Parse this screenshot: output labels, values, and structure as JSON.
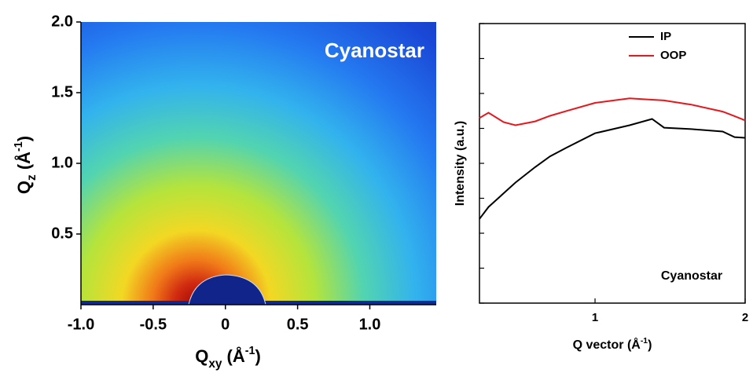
{
  "chart_data": [
    {
      "type": "heatmap",
      "annotation": "Cyanostar",
      "x_label": [
        "Q",
        "xy",
        " (Å",
        "-1",
        ")"
      ],
      "y_label": [
        "Q",
        "z",
        " (Å",
        "-1",
        ")"
      ],
      "xlim": [
        -1.0,
        1.46
      ],
      "ylim": [
        0,
        2.0
      ],
      "xticks": [
        {
          "value": -1.0,
          "label": "-1.0"
        },
        {
          "value": -0.5,
          "label": "-0.5"
        },
        0,
        0.5,
        {
          "value": 1.0,
          "label": "1.0"
        }
      ],
      "yticks": [
        0.5,
        {
          "value": 1.0,
          "label": "1.0"
        },
        1.5,
        {
          "value": 2.0,
          "label": "2.0"
        }
      ]
    },
    {
      "type": "line",
      "annotation": "Cyanostar",
      "x_label": [
        "Q vector (Å",
        "-1",
        ")"
      ],
      "y_label": "Intensity (a.u.)",
      "x": [
        0.23,
        0.29,
        0.39,
        0.47,
        0.6,
        0.7,
        0.81,
        1.0,
        1.23,
        1.38,
        1.46,
        1.64,
        1.85,
        1.93,
        2.0
      ],
      "series": [
        {
          "name": "IP",
          "color": "#000000",
          "values": [
            2.41,
            2.75,
            3.14,
            3.45,
            3.89,
            4.2,
            4.45,
            4.86,
            5.09,
            5.27,
            5.02,
            4.98,
            4.91,
            4.75,
            4.73
          ]
        },
        {
          "name": "OOP",
          "color": "#e8161b",
          "values": [
            5.3,
            5.45,
            5.18,
            5.09,
            5.2,
            5.36,
            5.5,
            5.73,
            5.86,
            5.82,
            5.8,
            5.68,
            5.48,
            5.35,
            5.23
          ]
        }
      ],
      "xlim": [
        0.23,
        2.0
      ],
      "ylim": [
        0,
        8
      ],
      "xticks": [
        1,
        2
      ],
      "yticks": [
        0,
        1,
        2,
        3,
        4,
        5,
        6,
        7,
        8
      ]
    }
  ]
}
